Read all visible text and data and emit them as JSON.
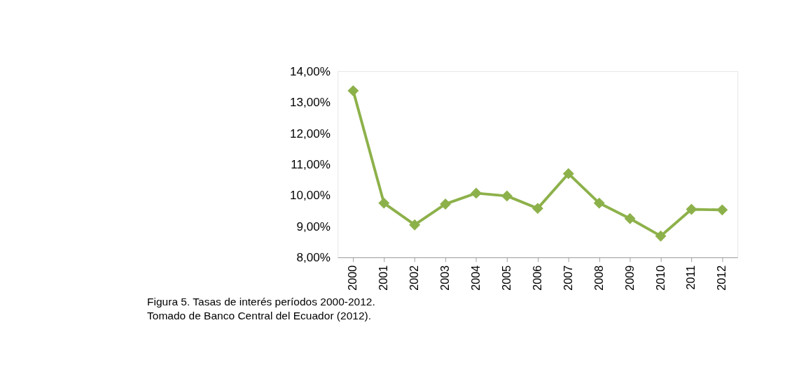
{
  "chart_data": {
    "type": "line",
    "categories": [
      "2000",
      "2001",
      "2002",
      "2003",
      "2004",
      "2005",
      "2006",
      "2007",
      "2008",
      "2009",
      "2010",
      "2011",
      "2012"
    ],
    "series": [
      {
        "color": "#8db14a",
        "values": [
          13.37,
          9.75,
          9.05,
          9.72,
          10.07,
          9.98,
          9.58,
          10.7,
          9.75,
          9.25,
          8.69,
          9.55,
          9.53
        ]
      }
    ],
    "ylim": [
      8,
      14
    ],
    "yticks": [
      {
        "value": 8,
        "label": "8,00%"
      },
      {
        "value": 9,
        "label": "9,00%"
      },
      {
        "value": 10,
        "label": "10,00%"
      },
      {
        "value": 11,
        "label": "11,00%"
      },
      {
        "value": 12,
        "label": "12,00%"
      },
      {
        "value": 13,
        "label": "13,00%"
      },
      {
        "value": 14,
        "label": "14,00%"
      }
    ],
    "grid": false,
    "marker": "diamond",
    "line_style": "solid",
    "annotations": [
      "Figura 5.  Tasas de interés períodos 2000-2012.",
      "Tomado de Banco Central del Ecuador (2012)."
    ]
  }
}
